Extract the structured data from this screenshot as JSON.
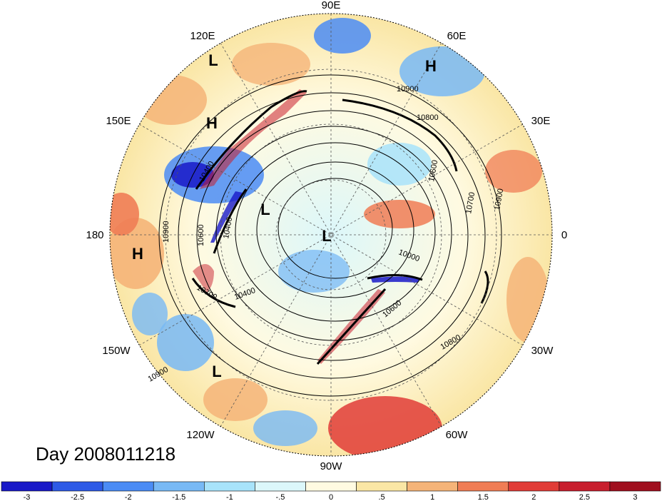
{
  "map": {
    "projection": "north-polar-stereographic",
    "field": "shaded anomaly with geopotential height contours",
    "longitude_labels": [
      "90E",
      "60E",
      "30E",
      "0",
      "30W",
      "60W",
      "90W",
      "120W",
      "150W",
      "180",
      "150E",
      "120E"
    ],
    "pressure_systems": [
      {
        "label": "L",
        "region": "east Siberia / 120E"
      },
      {
        "label": "H",
        "region": "north Atlantic / 60E"
      },
      {
        "label": "H",
        "region": "150E Pacific"
      },
      {
        "label": "L",
        "region": "Bering / Alaska"
      },
      {
        "label": "L",
        "region": "pole"
      },
      {
        "label": "H",
        "region": "180 Pacific"
      },
      {
        "label": "L",
        "region": "Gulf of Alaska / 150W"
      }
    ],
    "contour_labels": [
      "10900",
      "10800",
      "10400",
      "10700",
      "10900",
      "10600",
      "10400",
      "10900",
      "10700",
      "10400",
      "10600",
      "10000",
      "10600",
      "10800",
      "10900"
    ],
    "date_label": "Day 2008011218"
  },
  "colorbar": {
    "colors": [
      "#1919c8",
      "#2d5ae6",
      "#4b8cf5",
      "#78b9f5",
      "#a8e3fa",
      "#dcf7fa",
      "#fffae1",
      "#fae6a5",
      "#f5b478",
      "#f07d55",
      "#e13c37",
      "#c81e2d",
      "#a00f1e"
    ],
    "ticks": [
      "-3",
      "-2.5",
      "-2",
      "-1.5",
      "-1",
      "-.5",
      "0",
      ".5",
      "1",
      "1.5",
      "2",
      "2.5",
      "3"
    ]
  }
}
